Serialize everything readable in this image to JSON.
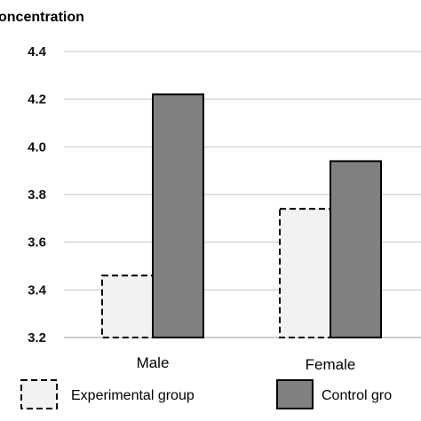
{
  "chart_data": {
    "type": "bar",
    "ylabel": "oncentration",
    "categories": [
      "Male",
      "Female"
    ],
    "series": [
      {
        "name": "Experimental group",
        "values": [
          3.46,
          3.74
        ],
        "fill": "#f2f2f2",
        "stroke": "#000000",
        "dashed": true
      },
      {
        "name": "Control gro",
        "values": [
          4.22,
          3.94
        ],
        "fill": "#808080",
        "stroke": "#000000",
        "dashed": false
      }
    ],
    "ylim": [
      3.2,
      4.4
    ],
    "yticks": [
      "3.2",
      "3.4",
      "3.6",
      "3.8",
      "4.0",
      "4.2",
      "4.4"
    ],
    "grid": true,
    "legend_position": "bottom"
  }
}
